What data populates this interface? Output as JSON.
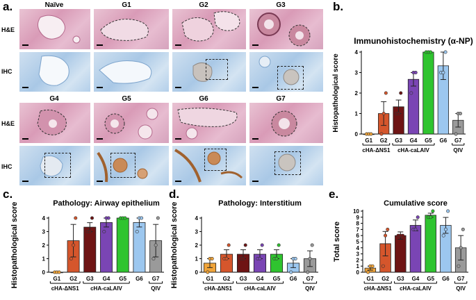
{
  "panel_labels": {
    "a": "a.",
    "b": "b.",
    "c": "c.",
    "d": "d.",
    "e": "e."
  },
  "histology": {
    "row_labels": {
      "he": "H&E",
      "ihc": "IHC"
    },
    "top_groups": [
      "Naïve",
      "G1",
      "G2",
      "G3"
    ],
    "bottom_groups": [
      "G4",
      "G5",
      "G6",
      "G7"
    ],
    "colors": {
      "he_stain": "#d99bb7",
      "ihc_stain": "#a9c8e6",
      "np_stain": "#a0612e"
    }
  },
  "brackets": {
    "group1": "cHA-ΔNS1",
    "group2": "cHA-caLAIV",
    "group3": "QIV"
  },
  "chart_data": [
    {
      "id": "b",
      "type": "bar",
      "title": "Immunohistochemistry (α-NP)",
      "ylabel": "Histopathological score",
      "categories": [
        "G1",
        "G2",
        "G3",
        "G4",
        "G5",
        "G6",
        "G7"
      ],
      "values": [
        0,
        1.0,
        1.33,
        2.67,
        4,
        3.33,
        0.67
      ],
      "errors": [
        0,
        0.58,
        0.33,
        0.33,
        0,
        0.67,
        0.33
      ],
      "points": [
        [
          0,
          0,
          0
        ],
        [
          0,
          1,
          2
        ],
        [
          1,
          1,
          2
        ],
        [
          2,
          3,
          3
        ],
        [
          4,
          4,
          4
        ],
        [
          3,
          3,
          4
        ],
        [
          0,
          1,
          1
        ]
      ],
      "ylim": [
        0,
        4
      ],
      "yticks": [
        "0",
        "1",
        "2",
        "3",
        "4"
      ],
      "colors": [
        "#f0a43a",
        "#d5562c",
        "#6e1414",
        "#7a45b4",
        "#2fc42f",
        "#9cc7ef",
        "#9a9a9a"
      ]
    },
    {
      "id": "c",
      "type": "bar",
      "title": "Pathology: Airway epithelium",
      "ylabel": "Histopathological score",
      "categories": [
        "G1",
        "G2",
        "G3",
        "G4",
        "G5",
        "G6",
        "G7"
      ],
      "values": [
        0,
        2.33,
        3.33,
        3.67,
        4,
        3.67,
        2.33
      ],
      "errors": [
        0,
        1.2,
        0.33,
        0.33,
        0,
        0.33,
        1.2
      ],
      "points": [
        [
          0,
          0,
          0
        ],
        [
          1,
          2,
          4
        ],
        [
          3,
          3,
          4
        ],
        [
          3,
          4,
          4
        ],
        [
          4,
          4,
          4
        ],
        [
          3,
          4,
          4
        ],
        [
          1,
          2,
          4
        ]
      ],
      "ylim": [
        0,
        4
      ],
      "yticks": [
        "0",
        "1",
        "2",
        "3",
        "4"
      ],
      "colors": [
        "#f0a43a",
        "#d5562c",
        "#6e1414",
        "#7a45b4",
        "#2fc42f",
        "#9cc7ef",
        "#9a9a9a"
      ]
    },
    {
      "id": "d",
      "type": "bar",
      "title": "Pathology: Interstitium",
      "ylabel": "Histopathological score",
      "categories": [
        "G1",
        "G2",
        "G3",
        "G4",
        "G5",
        "G6",
        "G7"
      ],
      "values": [
        0.67,
        1.33,
        1.33,
        1.33,
        1.33,
        0.67,
        1.0
      ],
      "errors": [
        0.33,
        0.33,
        0.33,
        0.33,
        0.33,
        0.33,
        0.58
      ],
      "points": [
        [
          0,
          1,
          1
        ],
        [
          1,
          1,
          2
        ],
        [
          1,
          1,
          2
        ],
        [
          1,
          1,
          2
        ],
        [
          1,
          1,
          2
        ],
        [
          0,
          1,
          1
        ],
        [
          0,
          1,
          2
        ]
      ],
      "ylim": [
        0,
        4
      ],
      "yticks": [
        "0",
        "1",
        "2",
        "3",
        "4"
      ],
      "colors": [
        "#f0a43a",
        "#d5562c",
        "#6e1414",
        "#7a45b4",
        "#2fc42f",
        "#9cc7ef",
        "#9a9a9a"
      ]
    },
    {
      "id": "e",
      "type": "bar",
      "title": "Cumulative score",
      "ylabel": "Total score",
      "categories": [
        "G1",
        "G2",
        "G3",
        "G4",
        "G5",
        "G6",
        "G7"
      ],
      "values": [
        0.67,
        4.67,
        6.0,
        7.67,
        9.33,
        7.67,
        4.0
      ],
      "errors": [
        0.33,
        2.0,
        0.6,
        0.88,
        0.33,
        1.3,
        2.0
      ],
      "points": [
        [
          0,
          1,
          1
        ],
        [
          1,
          6,
          7
        ],
        [
          6,
          6,
          6
        ],
        [
          7,
          7,
          9
        ],
        [
          9,
          9,
          10
        ],
        [
          6,
          7,
          10
        ],
        [
          1,
          4,
          7
        ]
      ],
      "ylim": [
        0,
        10
      ],
      "yticks": [
        "0",
        "1",
        "2",
        "3",
        "4",
        "5",
        "6",
        "7",
        "8",
        "9",
        "10"
      ],
      "colors": [
        "#f0a43a",
        "#d5562c",
        "#6e1414",
        "#7a45b4",
        "#2fc42f",
        "#9cc7ef",
        "#9a9a9a"
      ]
    }
  ]
}
